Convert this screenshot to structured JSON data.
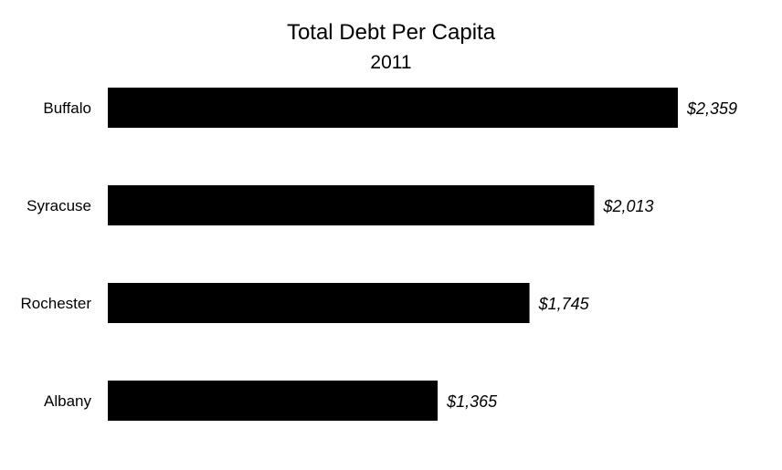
{
  "chart_data": {
    "type": "bar",
    "orientation": "horizontal",
    "title": "Total Debt Per Capita",
    "subtitle": "2011",
    "categories": [
      "Buffalo",
      "Syracuse",
      "Rochester",
      "Albany"
    ],
    "values": [
      2359,
      2013,
      1745,
      1365
    ],
    "value_labels": [
      "$2,359",
      "$2,013",
      "$1,745",
      "$1,365"
    ],
    "xlim": [
      0,
      2359
    ],
    "grid": false,
    "legend": "none",
    "bar_color": "#000000"
  }
}
